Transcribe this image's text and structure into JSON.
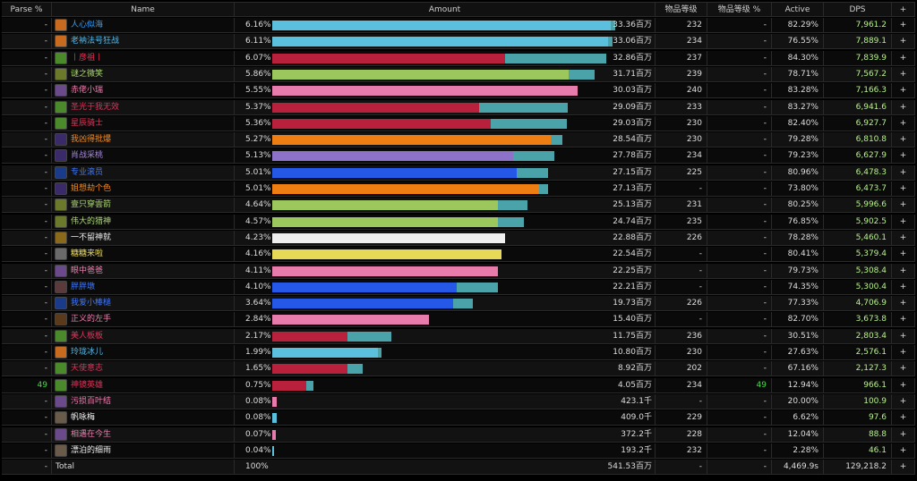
{
  "columns": {
    "parse": "Parse %",
    "name": "Name",
    "amount": "Amount",
    "ilvl": "物品等级",
    "ilvl_pct": "物品等级 %",
    "active": "Active",
    "dps": "DPS",
    "plus": "+"
  },
  "rows": [
    {
      "parse": "-",
      "name": "人心似海",
      "name_color": "#2fa2ff",
      "icon_color": "#c86b1e",
      "icon": "fire-icon",
      "pct": "6.16%",
      "bar_frac": 0.9,
      "secondary_frac": 0.913,
      "bar_color": "#5bbfde",
      "amount": "33.36百万",
      "ilvl": "232",
      "ilvl_pct": "-",
      "active": "82.29%",
      "dps": "7,961.2",
      "plus": "+"
    },
    {
      "parse": "-",
      "name": "老衲法号狂战",
      "name_color": "#58b8e6",
      "icon_color": "#c86b1e",
      "icon": "fire-icon",
      "pct": "6.11%",
      "bar_frac": 0.893,
      "secondary_frac": 0.904,
      "bar_color": "#5bbfde",
      "amount": "33.06百万",
      "ilvl": "234",
      "ilvl_pct": "-",
      "active": "76.55%",
      "dps": "7,889.1",
      "plus": "+"
    },
    {
      "parse": "-",
      "name": "丨彦祖丨",
      "name_color": "#e0335a",
      "icon_color": "#4a8a2a",
      "icon": "skull-icon",
      "pct": "6.07%",
      "bar_frac": 0.62,
      "secondary_frac": 0.888,
      "bar_color": "#b8203c",
      "amount": "32.86百万",
      "ilvl": "237",
      "ilvl_pct": "-",
      "active": "84.30%",
      "dps": "7,839.9",
      "plus": "+"
    },
    {
      "parse": "-",
      "name": "谜之微笑",
      "name_color": "#b0d87a",
      "icon_color": "#6a7a2a",
      "icon": "bow-icon",
      "pct": "5.86%",
      "bar_frac": 0.787,
      "secondary_frac": 0.857,
      "bar_color": "#9cc75c",
      "amount": "31.71百万",
      "ilvl": "239",
      "ilvl_pct": "-",
      "active": "78.71%",
      "dps": "7,567.2",
      "plus": "+"
    },
    {
      "parse": "-",
      "name": "赤佬小瑞",
      "name_color": "#ef7fb0",
      "icon_color": "#6a4a8a",
      "icon": "light-icon",
      "pct": "5.55%",
      "bar_frac": 0.811,
      "secondary_frac": 0.811,
      "bar_color": "#e77bab",
      "amount": "30.03百万",
      "ilvl": "240",
      "ilvl_pct": "-",
      "active": "83.28%",
      "dps": "7,166.3",
      "plus": "+"
    },
    {
      "parse": "-",
      "name": "圣光于我无效",
      "name_color": "#e0335a",
      "icon_color": "#4a8a2a",
      "icon": "skull-icon",
      "pct": "5.37%",
      "bar_frac": 0.55,
      "secondary_frac": 0.786,
      "bar_color": "#b8203c",
      "amount": "29.09百万",
      "ilvl": "233",
      "ilvl_pct": "-",
      "active": "83.27%",
      "dps": "6,941.6",
      "plus": "+"
    },
    {
      "parse": "-",
      "name": "星辰骑士",
      "name_color": "#e0335a",
      "icon_color": "#4a8a2a",
      "icon": "skull-icon",
      "pct": "5.36%",
      "bar_frac": 0.58,
      "secondary_frac": 0.784,
      "bar_color": "#b8203c",
      "amount": "29.03百万",
      "ilvl": "230",
      "ilvl_pct": "-",
      "active": "82.40%",
      "dps": "6,927.7",
      "plus": "+"
    },
    {
      "parse": "-",
      "name": "我凶得批爆",
      "name_color": "#f28a20",
      "icon_color": "#3a2a6a",
      "icon": "claw-icon",
      "pct": "5.27%",
      "bar_frac": 0.74,
      "secondary_frac": 0.771,
      "bar_color": "#ee7d12",
      "amount": "28.54百万",
      "ilvl": "230",
      "ilvl_pct": "-",
      "active": "79.28%",
      "dps": "6,810.8",
      "plus": "+"
    },
    {
      "parse": "-",
      "name": "肖战采桃",
      "name_color": "#a58ad8",
      "icon_color": "#3a2a6a",
      "icon": "shadow-icon",
      "pct": "5.13%",
      "bar_frac": 0.64,
      "secondary_frac": 0.75,
      "bar_color": "#8c72c8",
      "amount": "27.78百万",
      "ilvl": "234",
      "ilvl_pct": "-",
      "active": "79.23%",
      "dps": "6,627.9",
      "plus": "+"
    },
    {
      "parse": "-",
      "name": "专业滚员",
      "name_color": "#3f78ff",
      "icon_color": "#1a3a8a",
      "icon": "lightning-icon",
      "pct": "5.01%",
      "bar_frac": 0.65,
      "secondary_frac": 0.733,
      "bar_color": "#2558e6",
      "amount": "27.15百万",
      "ilvl": "225",
      "ilvl_pct": "-",
      "active": "80.96%",
      "dps": "6,478.3",
      "plus": "+"
    },
    {
      "parse": "-",
      "name": "姐想劫个色",
      "name_color": "#f28a20",
      "icon_color": "#3a2a6a",
      "icon": "claw-icon",
      "pct": "5.01%",
      "bar_frac": 0.71,
      "secondary_frac": 0.733,
      "bar_color": "#ee7d12",
      "amount": "27.13百万",
      "ilvl": "-",
      "ilvl_pct": "-",
      "active": "73.80%",
      "dps": "6,473.7",
      "plus": "+"
    },
    {
      "parse": "-",
      "name": "壹只穿雲箭",
      "name_color": "#b0d87a",
      "icon_color": "#6a7a2a",
      "icon": "bow-icon",
      "pct": "4.64%",
      "bar_frac": 0.6,
      "secondary_frac": 0.679,
      "bar_color": "#9cc75c",
      "amount": "25.13百万",
      "ilvl": "231",
      "ilvl_pct": "-",
      "active": "80.25%",
      "dps": "5,996.6",
      "plus": "+"
    },
    {
      "parse": "-",
      "name": "伟大的猎神",
      "name_color": "#b0d87a",
      "icon_color": "#6a7a2a",
      "icon": "bow-icon",
      "pct": "4.57%",
      "bar_frac": 0.6,
      "secondary_frac": 0.668,
      "bar_color": "#9cc75c",
      "amount": "24.74百万",
      "ilvl": "235",
      "ilvl_pct": "-",
      "active": "76.85%",
      "dps": "5,902.5",
      "plus": "+"
    },
    {
      "parse": "-",
      "name": "一不留神就",
      "name_color": "#eeeeee",
      "icon_color": "#8a6a1a",
      "icon": "skull-icon",
      "pct": "4.23%",
      "bar_frac": 0.618,
      "secondary_frac": 0.618,
      "bar_color": "#eeeeee",
      "amount": "22.88百万",
      "ilvl": "226",
      "ilvl_pct": "-",
      "active": "78.28%",
      "dps": "5,460.1",
      "plus": "+"
    },
    {
      "parse": "-",
      "name": "糖糖来啦",
      "name_color": "#f0df60",
      "icon_color": "#6a6a6a",
      "icon": "dagger-icon",
      "pct": "4.16%",
      "bar_frac": 0.609,
      "secondary_frac": 0.609,
      "bar_color": "#e7d956",
      "amount": "22.54百万",
      "ilvl": "-",
      "ilvl_pct": "-",
      "active": "80.41%",
      "dps": "5,379.4",
      "plus": "+"
    },
    {
      "parse": "-",
      "name": "眼中爸爸",
      "name_color": "#ef7fb0",
      "icon_color": "#6a4a8a",
      "icon": "portrait-icon",
      "pct": "4.11%",
      "bar_frac": 0.601,
      "secondary_frac": 0.601,
      "bar_color": "#e77bab",
      "amount": "22.25百万",
      "ilvl": "-",
      "ilvl_pct": "-",
      "active": "79.73%",
      "dps": "5,308.4",
      "plus": "+"
    },
    {
      "parse": "-",
      "name": "胖胖墩",
      "name_color": "#3f78ff",
      "icon_color": "#5a3a3a",
      "icon": "portrait-icon",
      "pct": "4.10%",
      "bar_frac": 0.49,
      "secondary_frac": 0.6,
      "bar_color": "#2558e6",
      "amount": "22.21百万",
      "ilvl": "-",
      "ilvl_pct": "-",
      "active": "74.35%",
      "dps": "5,300.4",
      "plus": "+"
    },
    {
      "parse": "-",
      "name": "我爱小棒槌",
      "name_color": "#3f78ff",
      "icon_color": "#1a3a8a",
      "icon": "lightning-icon",
      "pct": "3.64%",
      "bar_frac": 0.48,
      "secondary_frac": 0.533,
      "bar_color": "#2558e6",
      "amount": "19.73百万",
      "ilvl": "226",
      "ilvl_pct": "-",
      "active": "77.33%",
      "dps": "4,706.9",
      "plus": "+"
    },
    {
      "parse": "-",
      "name": "正义的左手",
      "name_color": "#ef7fb0",
      "icon_color": "#5a3a1a",
      "icon": "hand-icon",
      "pct": "2.84%",
      "bar_frac": 0.416,
      "secondary_frac": 0.416,
      "bar_color": "#e77bab",
      "amount": "15.40百万",
      "ilvl": "-",
      "ilvl_pct": "-",
      "active": "82.70%",
      "dps": "3,673.8",
      "plus": "+"
    },
    {
      "parse": "-",
      "name": "美人板板",
      "name_color": "#e0335a",
      "icon_color": "#4a8a2a",
      "icon": "skull-icon",
      "pct": "2.17%",
      "bar_frac": 0.2,
      "secondary_frac": 0.317,
      "bar_color": "#b8203c",
      "amount": "11.75百万",
      "ilvl": "236",
      "ilvl_pct": "-",
      "active": "30.51%",
      "dps": "2,803.4",
      "plus": "+"
    },
    {
      "parse": "-",
      "name": "玲珑冰儿",
      "name_color": "#58b8e6",
      "icon_color": "#c86b1e",
      "icon": "fire-icon",
      "pct": "1.99%",
      "bar_frac": 0.28,
      "secondary_frac": 0.291,
      "bar_color": "#5bbfde",
      "amount": "10.80百万",
      "ilvl": "230",
      "ilvl_pct": "-",
      "active": "27.63%",
      "dps": "2,576.1",
      "plus": "+"
    },
    {
      "parse": "-",
      "name": "天使意志",
      "name_color": "#e0335a",
      "icon_color": "#4a8a2a",
      "icon": "skull-icon",
      "pct": "1.65%",
      "bar_frac": 0.2,
      "secondary_frac": 0.241,
      "bar_color": "#b8203c",
      "amount": "8.92百万",
      "ilvl": "202",
      "ilvl_pct": "-",
      "active": "67.16%",
      "dps": "2,127.3",
      "plus": "+"
    },
    {
      "parse": "49",
      "name": "神镜英雄",
      "name_color": "#e0335a",
      "icon_color": "#4a8a2a",
      "icon": "skull-icon",
      "pct": "0.75%",
      "bar_frac": 0.09,
      "secondary_frac": 0.109,
      "bar_color": "#b8203c",
      "amount": "4.05百万",
      "ilvl": "234",
      "ilvl_pct": "49",
      "active": "12.94%",
      "dps": "966.1",
      "plus": "+"
    },
    {
      "parse": "-",
      "name": "污损百叶结",
      "name_color": "#ef7fb0",
      "icon_color": "#6a4a8a",
      "icon": "light-icon",
      "pct": "0.08%",
      "bar_frac": 0.011,
      "secondary_frac": 0.011,
      "bar_color": "#e77bab",
      "amount": "423.1千",
      "ilvl": "-",
      "ilvl_pct": "-",
      "active": "20.00%",
      "dps": "100.9",
      "plus": "+"
    },
    {
      "parse": "-",
      "name": "帆咏梅",
      "name_color": "#eeeeee",
      "icon_color": "#6a5a4a",
      "icon": "portrait-icon",
      "pct": "0.08%",
      "bar_frac": 0.011,
      "secondary_frac": 0.011,
      "bar_color": "#5bbfde",
      "amount": "409.0千",
      "ilvl": "229",
      "ilvl_pct": "-",
      "active": "6.62%",
      "dps": "97.6",
      "plus": "+"
    },
    {
      "parse": "-",
      "name": "相遇在今生",
      "name_color": "#ef7fb0",
      "icon_color": "#6a4a8a",
      "icon": "light-icon",
      "pct": "0.07%",
      "bar_frac": 0.01,
      "secondary_frac": 0.01,
      "bar_color": "#e77bab",
      "amount": "372.2千",
      "ilvl": "228",
      "ilvl_pct": "-",
      "active": "12.04%",
      "dps": "88.8",
      "plus": "+"
    },
    {
      "parse": "-",
      "name": "漂泊的细雨",
      "name_color": "#eeeeee",
      "icon_color": "#6a5a4a",
      "icon": "portrait-icon",
      "pct": "0.04%",
      "bar_frac": 0.005,
      "secondary_frac": 0.005,
      "bar_color": "#5bbfde",
      "amount": "193.2千",
      "ilvl": "232",
      "ilvl_pct": "-",
      "active": "2.28%",
      "dps": "46.1",
      "plus": "+"
    }
  ],
  "total": {
    "parse": "-",
    "name": "Total",
    "pct": "100%",
    "amount": "541.53百万",
    "ilvl": "-",
    "ilvl_pct": "-",
    "active": "4,469.9s",
    "dps": "129,218.2",
    "plus": "+"
  },
  "colors": {
    "secondary_bar": "#4aa3a8",
    "background": "#000000",
    "parse_highlight": "#44dd44"
  }
}
